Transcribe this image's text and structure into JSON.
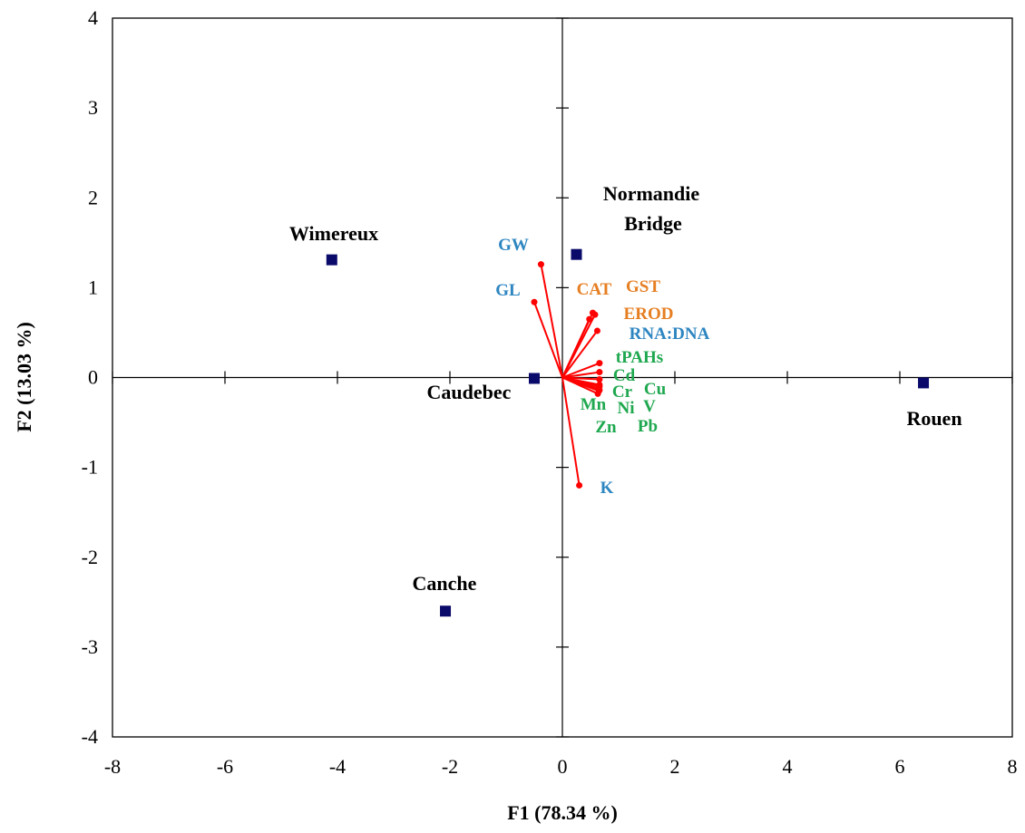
{
  "chart_data": {
    "type": "scatter",
    "title": "",
    "xlabel": "F1 (78.34 %)",
    "ylabel": "F2 (13.03 %)",
    "xlim": [
      -8,
      8
    ],
    "ylim": [
      -4,
      4
    ],
    "xticks": [
      -8,
      -6,
      -4,
      -2,
      0,
      2,
      4,
      6,
      8
    ],
    "yticks": [
      -4,
      -3,
      -2,
      -1,
      0,
      1,
      2,
      3,
      4
    ],
    "grid": false,
    "colors": {
      "marker": "#0a0a6b",
      "vector": "#ff0000",
      "blue": "#2e86c1",
      "orange": "#e67e22",
      "green": "#1fa84f"
    },
    "sites": [
      {
        "name": "Wimereux",
        "x": -4.1,
        "y": 1.31
      },
      {
        "name": "Normandie Bridge",
        "x": 0.25,
        "y": 1.37
      },
      {
        "name": "Caudebec",
        "x": -0.5,
        "y": -0.01
      },
      {
        "name": "Rouen",
        "x": 6.42,
        "y": -0.06
      },
      {
        "name": "Canche",
        "x": -2.08,
        "y": -2.6
      }
    ],
    "variables": [
      {
        "name": "GW",
        "x": -0.38,
        "y": 1.26,
        "group": "blue"
      },
      {
        "name": "GL",
        "x": -0.5,
        "y": 0.84,
        "group": "blue"
      },
      {
        "name": "CAT",
        "x": 0.48,
        "y": 0.65,
        "group": "orange"
      },
      {
        "name": "GST",
        "x": 0.54,
        "y": 0.72,
        "group": "orange"
      },
      {
        "name": "EROD",
        "x": 0.58,
        "y": 0.7,
        "group": "orange"
      },
      {
        "name": "RNA:DNA",
        "x": 0.62,
        "y": 0.52,
        "group": "blue"
      },
      {
        "name": "tPAHs",
        "x": 0.66,
        "y": 0.16,
        "group": "green"
      },
      {
        "name": "Cd",
        "x": 0.66,
        "y": 0.06,
        "group": "green"
      },
      {
        "name": "Cu",
        "x": 0.66,
        "y": -0.02,
        "group": "green"
      },
      {
        "name": "Cr",
        "x": 0.66,
        "y": -0.08,
        "group": "green"
      },
      {
        "name": "Mn",
        "x": 0.64,
        "y": -0.12,
        "group": "green"
      },
      {
        "name": "Ni",
        "x": 0.65,
        "y": -0.15,
        "group": "green"
      },
      {
        "name": "V",
        "x": 0.66,
        "y": -0.1,
        "group": "green"
      },
      {
        "name": "Zn",
        "x": 0.63,
        "y": -0.18,
        "group": "green"
      },
      {
        "name": "Pb",
        "x": 0.66,
        "y": -0.14,
        "group": "green"
      },
      {
        "name": "K",
        "x": 0.3,
        "y": -1.2,
        "group": "blue"
      }
    ]
  }
}
